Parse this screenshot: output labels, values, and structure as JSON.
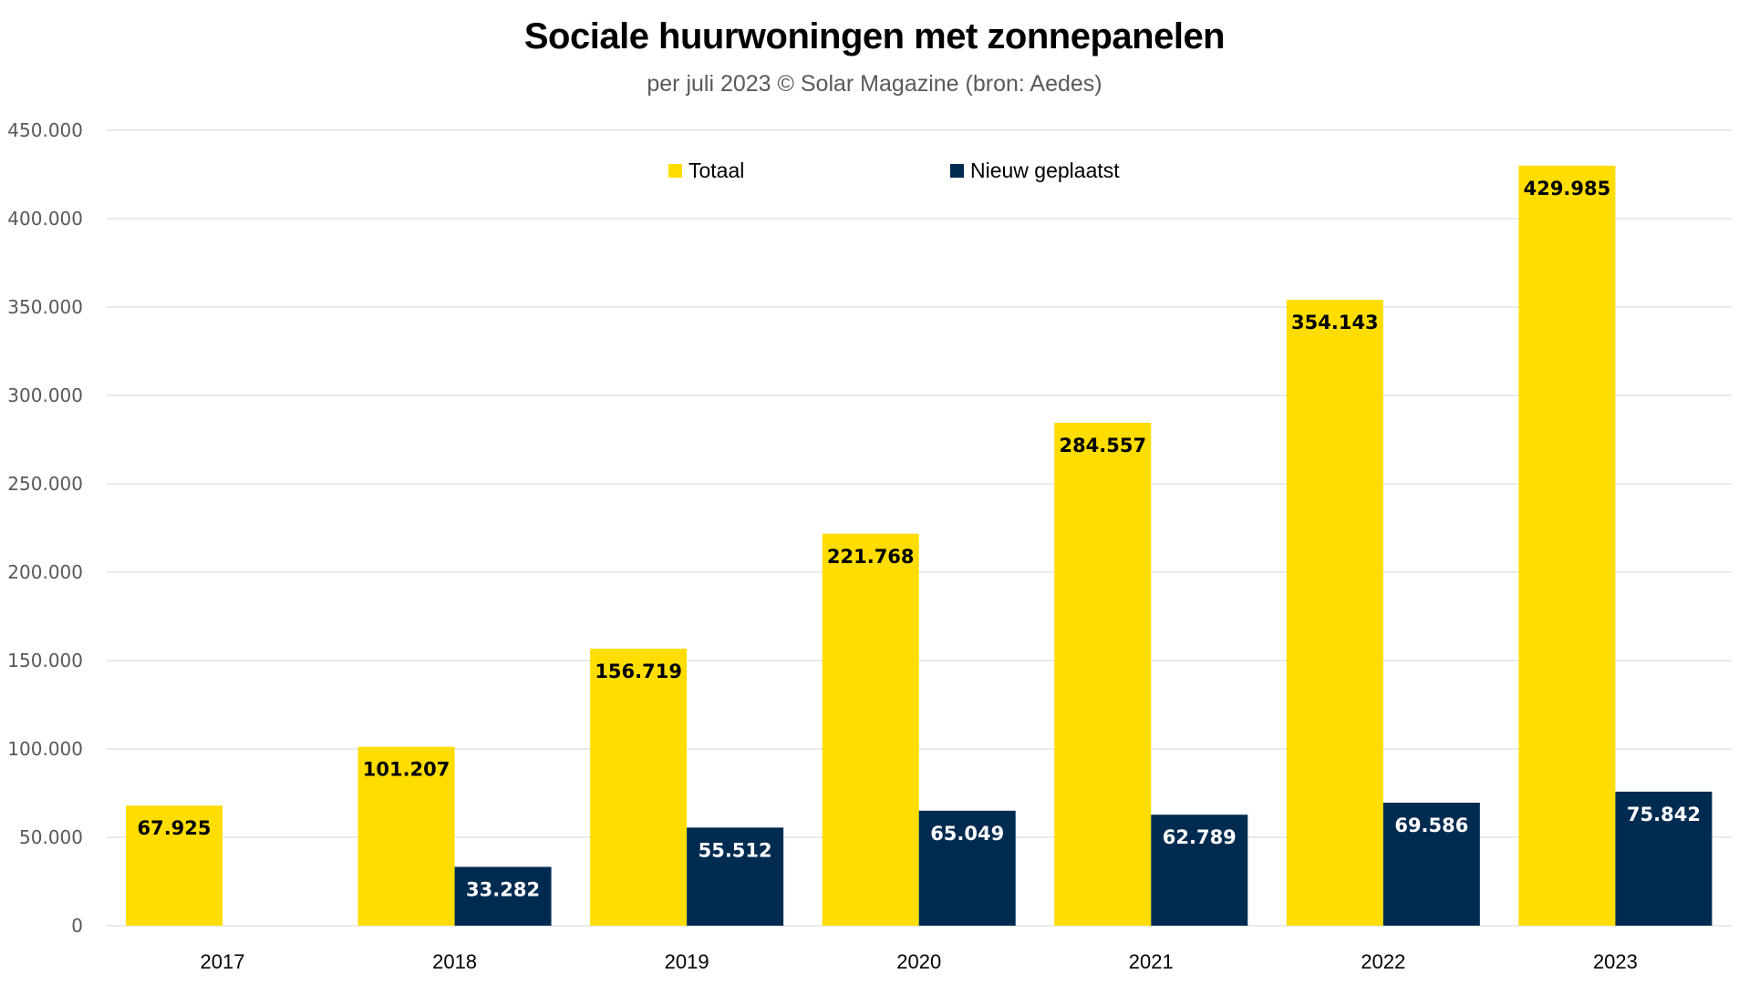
{
  "chart_data": {
    "type": "bar",
    "title": "Sociale huurwoningen met zonnepanelen",
    "subtitle": "per juli 2023 © Solar Magazine (bron: Aedes)",
    "xlabel": "",
    "ylabel": "",
    "categories": [
      "2017",
      "2018",
      "2019",
      "2020",
      "2021",
      "2022",
      "2023"
    ],
    "series": [
      {
        "name": "Totaal",
        "color": "#FFDD00",
        "label_color": "#000000",
        "values": [
          67925,
          101207,
          156719,
          221768,
          284557,
          354143,
          429985
        ],
        "labels": [
          "67.925",
          "101.207",
          "156.719",
          "221.768",
          "284.557",
          "354.143",
          "429.985"
        ]
      },
      {
        "name": "Nieuw geplaatst",
        "color": "#002B51",
        "label_color": "#FFFFFF",
        "values": [
          null,
          33282,
          55512,
          65049,
          62789,
          69586,
          75842
        ],
        "labels": [
          null,
          "33.282",
          "55.512",
          "65.049",
          "62.789",
          "69.586",
          "75.842"
        ]
      }
    ],
    "ylim": [
      0,
      450000
    ],
    "yticks": [
      0,
      50000,
      100000,
      150000,
      200000,
      250000,
      300000,
      350000,
      400000,
      450000
    ],
    "ytick_labels": [
      "0",
      "50.000",
      "100.000",
      "150.000",
      "200.000",
      "250.000",
      "300.000",
      "350.000",
      "400.000",
      "450.000"
    ],
    "grid": true,
    "legend_position": "top-center",
    "gridline_color": "#E3E3E3"
  }
}
